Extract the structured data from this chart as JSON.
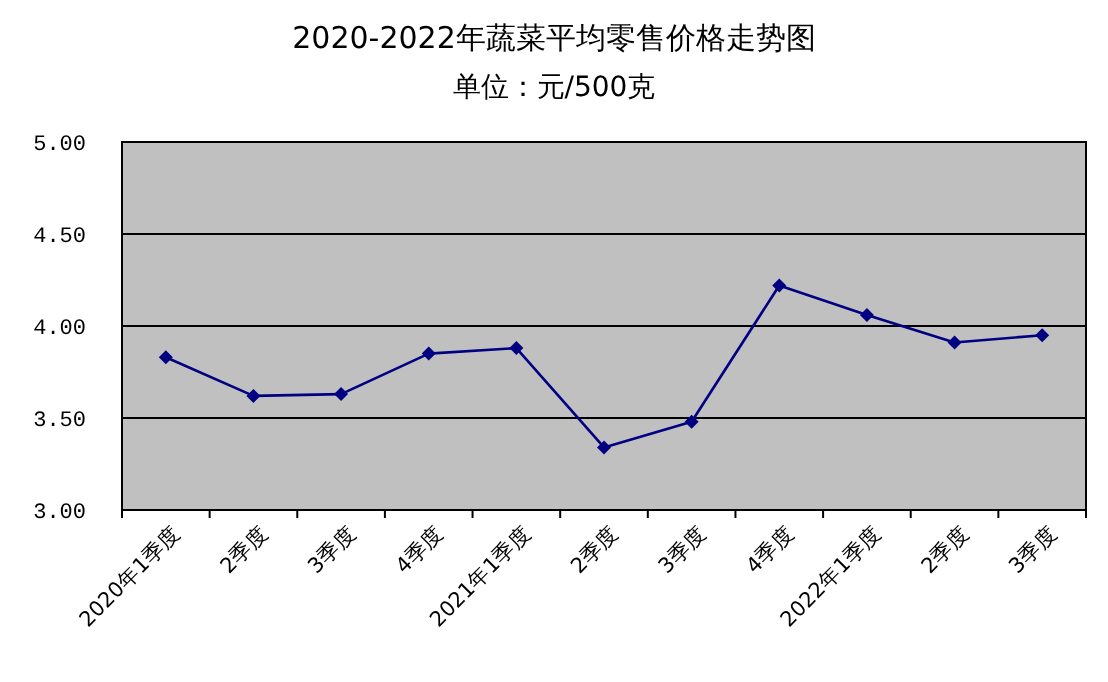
{
  "chart_data": {
    "type": "line",
    "title": "2020-2022年蔬菜平均零售价格走势图",
    "subtitle": "单位：元/500克",
    "categories": [
      "2020年1季度",
      "2季度",
      "3季度",
      "4季度",
      "2021年1季度",
      "2季度",
      "3季度",
      "4季度",
      "2022年1季度",
      "2季度",
      "3季度"
    ],
    "series": [
      {
        "color": "#000080",
        "values": [
          3.83,
          3.62,
          3.63,
          3.85,
          3.88,
          3.34,
          3.48,
          4.22,
          4.06,
          3.91,
          3.95
        ]
      }
    ],
    "ylim": [
      3,
      5
    ],
    "yticks": [
      {
        "value": 3,
        "label": "3.00"
      },
      {
        "value": 3.5,
        "label": "3.50"
      },
      {
        "value": 4,
        "label": "4.00"
      },
      {
        "value": 4.5,
        "label": "4.50"
      },
      {
        "value": 5,
        "label": "5.00"
      }
    ],
    "grid": "y",
    "marker": "diamond"
  }
}
